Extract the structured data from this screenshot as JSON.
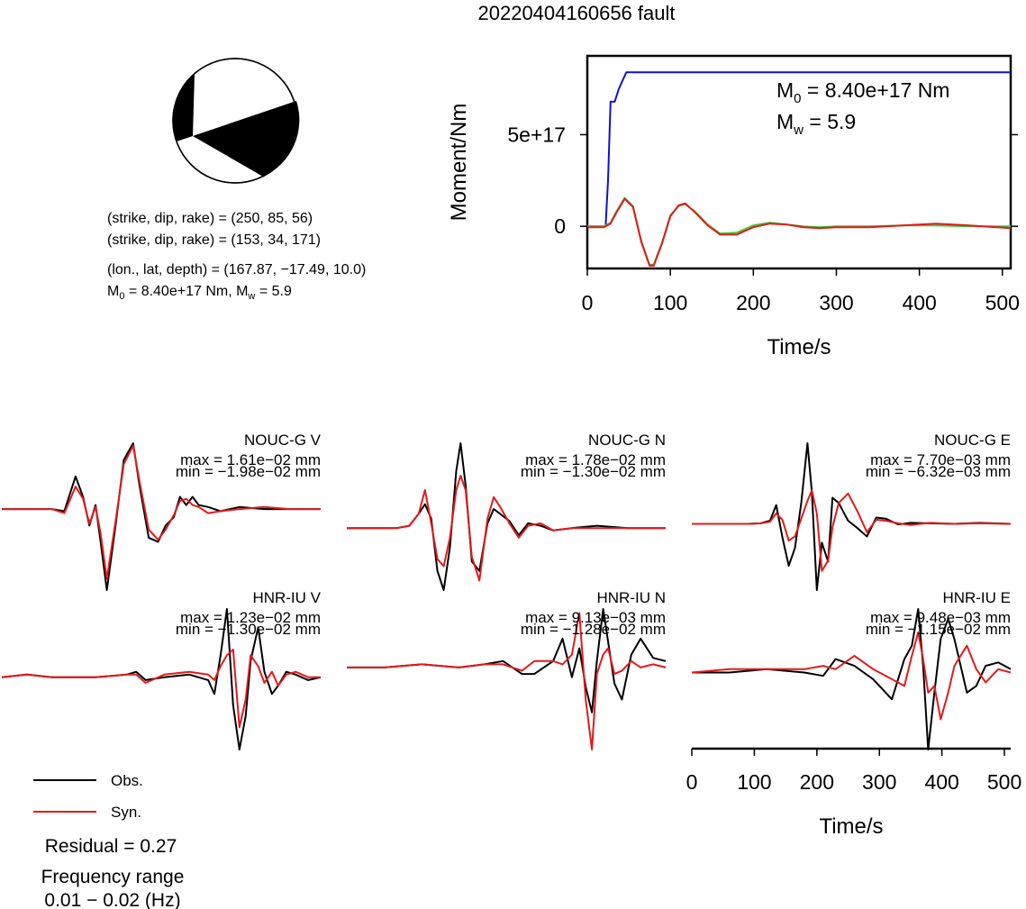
{
  "title": "20220404160656 fault",
  "mechanism": {
    "plane1": "(strike, dip, rake) = (250, 85, 56)",
    "plane2": "(strike, dip, rake) = (153, 34, 171)",
    "location": "(lon., lat, depth) = (167.87, −17.49, 10.0)",
    "moment_line": {
      "m0_sym": "M",
      "m0_sub": "0",
      "m0_val": " = 8.40e+17 Nm, M",
      "mw_sub": "w",
      "mw_val": " = 5.9"
    }
  },
  "moment_panel": {
    "m0_label": {
      "sym": "M",
      "sub": "0",
      "val": " = 8.40e+17 Nm"
    },
    "mw_label": {
      "sym": "M",
      "sub": "w",
      "val": " = 5.9"
    }
  },
  "legend": {
    "obs": "Obs.",
    "syn": "Syn."
  },
  "residual": "Residual = 0.27",
  "freq_title": "Frequency range",
  "freq_value": "0.01 − 0.02 (Hz)",
  "colors": {
    "obs": "#000000",
    "syn": "#e31a1c",
    "moment": "#1010d0",
    "stf": "#3cc83c"
  },
  "chart_data": [
    {
      "type": "line",
      "title": "",
      "xlabel": "Time/s",
      "ylabel": "Moment/Nm",
      "xlim": [
        0,
        510
      ],
      "ylim": [
        -2.3e+17,
        9.3e+17
      ],
      "xticks": [
        "0",
        "100",
        "200",
        "300",
        "400",
        "500"
      ],
      "yticks": [
        "0",
        "5e+17"
      ],
      "series": [
        {
          "name": "",
          "color": "blue",
          "x": [
            0,
            22,
            25,
            28,
            33,
            38,
            43,
            47,
            510
          ],
          "y": [
            0,
            0,
            2.5e+17,
            6.8e+17,
            6.8e+17,
            7.5e+17,
            8e+17,
            8.4e+17,
            8.4e+17
          ]
        },
        {
          "name": "",
          "color": "green",
          "x": [
            0,
            20,
            28,
            35,
            45,
            55,
            65,
            75,
            80,
            90,
            100,
            110,
            118,
            130,
            145,
            160,
            180,
            200,
            220,
            240,
            260,
            280,
            300,
            340,
            380,
            420,
            460,
            510
          ],
          "y": [
            0,
            0,
            2e+16,
            8e+16,
            1.55e+17,
            1.1e+17,
            -8e+16,
            -2.1e+17,
            -2.1e+17,
            -9e+16,
            6e+16,
            1.1e+17,
            1.2e+17,
            8e+16,
            1e+16,
            -4e+16,
            -3.5e+16,
            5000000000000000.0,
            2e+16,
            1e+16,
            0,
            -5000000000000000.0,
            0,
            0,
            5000000000000000.0,
            5000000000000000.0,
            0,
            0
          ]
        },
        {
          "name": "",
          "color": "red",
          "x": [
            0,
            20,
            28,
            35,
            45,
            55,
            65,
            75,
            80,
            90,
            100,
            110,
            118,
            130,
            145,
            160,
            180,
            200,
            220,
            240,
            260,
            280,
            300,
            340,
            380,
            420,
            460,
            510
          ],
          "y": [
            -5000000000000000.0,
            -5000000000000000.0,
            1.5e+16,
            7.5e+16,
            1.5e+17,
            1.05e+17,
            -8.5e+16,
            -2.15e+17,
            -2.15e+17,
            -9.5e+16,
            5.5e+16,
            1.15e+17,
            1.25e+17,
            7.5e+16,
            5000000000000000.0,
            -4.5e+16,
            -4.5e+16,
            -5000000000000000.0,
            1.5e+16,
            1e+16,
            -5000000000000000.0,
            -1e+16,
            -5000000000000000.0,
            -5000000000000000.0,
            5000000000000000.0,
            1.5e+16,
            5000000000000000.0,
            -1e+16
          ]
        }
      ]
    },
    {
      "type": "line",
      "title": "NOUC-G V",
      "max_label": "max = 1.61e−02 mm",
      "min_label": "min = −1.98e−02 mm",
      "xlim": [
        0,
        510
      ],
      "ylim": [
        -0.0198,
        0.0161
      ],
      "series": [
        {
          "name": "Obs.",
          "x": [
            0,
            80,
            100,
            118,
            130,
            140,
            150,
            158,
            168,
            182,
            195,
            210,
            220,
            235,
            250,
            262,
            275,
            285,
            295,
            305,
            315,
            330,
            350,
            380,
            420,
            460,
            510
          ],
          "y": [
            0,
            0,
            -0.0005,
            0.008,
            0.003,
            -0.004,
            0.001,
            -0.008,
            -0.0198,
            -0.004,
            0.012,
            0.0161,
            0.006,
            -0.007,
            -0.008,
            -0.004,
            -0.002,
            0.003,
            0.001,
            0.003,
            0.001,
            0.0005,
            -0.0005,
            0.0005,
            0,
            0,
            0
          ]
        },
        {
          "name": "Syn.",
          "x": [
            0,
            80,
            100,
            118,
            130,
            140,
            150,
            158,
            168,
            182,
            195,
            210,
            220,
            235,
            250,
            262,
            275,
            285,
            295,
            305,
            315,
            330,
            350,
            380,
            420,
            460,
            510
          ],
          "y": [
            0,
            0,
            -0.001,
            0.0055,
            0.0025,
            -0.0035,
            0.0005,
            -0.006,
            -0.017,
            -0.003,
            0.011,
            0.0155,
            0.007,
            -0.005,
            -0.0075,
            -0.005,
            -0.0015,
            0.002,
            0.0025,
            0.001,
            0.0005,
            -0.001,
            -0.0005,
            0,
            0.0005,
            0,
            0
          ]
        }
      ]
    },
    {
      "type": "line",
      "title": "NOUC-G N",
      "max_label": "max = 1.78e−02 mm",
      "min_label": "min = −1.30e−02 mm",
      "xlim": [
        0,
        510
      ],
      "ylim": [
        -0.013,
        0.0178
      ],
      "series": [
        {
          "name": "Obs.",
          "x": [
            0,
            80,
            100,
            115,
            125,
            135,
            145,
            155,
            165,
            175,
            182,
            190,
            200,
            212,
            225,
            235,
            245,
            260,
            275,
            290,
            310,
            330,
            360,
            400,
            450,
            510
          ],
          "y": [
            0,
            0,
            0.0005,
            0.003,
            0.005,
            0.002,
            -0.009,
            -0.013,
            -0.004,
            0.012,
            0.0178,
            0.009,
            -0.007,
            -0.009,
            0.001,
            0.004,
            0.003,
            0.0015,
            -0.0015,
            0.001,
            0.0005,
            -0.0005,
            0,
            0.0005,
            0,
            0
          ]
        },
        {
          "name": "Syn.",
          "x": [
            0,
            80,
            100,
            115,
            125,
            135,
            145,
            155,
            165,
            175,
            182,
            190,
            200,
            212,
            225,
            235,
            245,
            260,
            275,
            290,
            310,
            330,
            360,
            400,
            450,
            510
          ],
          "y": [
            0,
            0,
            0.0005,
            0.003,
            0.008,
            0.001,
            -0.0065,
            -0.008,
            -0.002,
            0.008,
            0.011,
            0.008,
            -0.006,
            -0.011,
            0.002,
            0.0065,
            0.0045,
            0.001,
            -0.002,
            0.0005,
            0.001,
            -0.0005,
            0,
            0,
            0,
            0
          ]
        }
      ]
    },
    {
      "type": "line",
      "title": "NOUC-G E",
      "max_label": "max = 7.70e−03 mm",
      "min_label": "min = −6.32e−03 mm",
      "xlim": [
        0,
        510
      ],
      "ylim": [
        -0.00632,
        0.0077
      ],
      "series": [
        {
          "name": "Obs.",
          "x": [
            0,
            90,
            110,
            125,
            135,
            145,
            155,
            165,
            175,
            185,
            192,
            200,
            208,
            218,
            225,
            235,
            250,
            265,
            280,
            295,
            310,
            330,
            350,
            380,
            420,
            460,
            510
          ],
          "y": [
            0,
            0,
            5e-05,
            0.0003,
            0.0018,
            -0.0013,
            -0.004,
            -0.0023,
            0.002,
            0.0077,
            0.003,
            -0.00632,
            -0.0018,
            -0.0036,
            0.0025,
            0.002,
            0.0003,
            -0.0004,
            -0.0012,
            0.0006,
            0.0005,
            -5e-05,
            0.0001,
            5e-05,
            0,
            0.0001,
            0
          ]
        },
        {
          "name": "Syn.",
          "x": [
            0,
            90,
            110,
            125,
            135,
            145,
            155,
            165,
            175,
            185,
            192,
            200,
            208,
            218,
            225,
            235,
            250,
            265,
            280,
            295,
            310,
            330,
            350,
            380,
            420,
            460,
            510
          ],
          "y": [
            0,
            0,
            5e-05,
            0.0002,
            0.001,
            0.0004,
            -0.0016,
            -0.0012,
            0.0005,
            0.0022,
            0.0032,
            0.001,
            -0.0045,
            -0.0035,
            -0.0003,
            0.002,
            0.0029,
            0.0012,
            -0.0008,
            0.0004,
            0.0003,
            5e-05,
            -0.0001,
            0.0001,
            0,
            5e-05,
            0
          ]
        }
      ]
    },
    {
      "type": "line",
      "title": "HNR-IU V",
      "max_label": "max = 1.23e−02 mm",
      "min_label": "min = −1.30e−02 mm",
      "xlim": [
        0,
        510
      ],
      "ylim": [
        -0.013,
        0.0123
      ],
      "series": [
        {
          "name": "Obs.",
          "x": [
            0,
            40,
            80,
            150,
            200,
            215,
            230,
            260,
            300,
            330,
            340,
            350,
            360,
            370,
            380,
            390,
            398,
            410,
            420,
            432,
            442,
            455,
            470,
            490,
            510
          ],
          "y": [
            0,
            0.0005,
            0,
            0,
            0.0005,
            0.001,
            -0.0005,
            0,
            0.0005,
            -0.0005,
            -0.003,
            0.004,
            0.0123,
            -0.005,
            -0.013,
            -0.007,
            0.003,
            0.009,
            0.001,
            -0.003,
            -0.0015,
            0.001,
            0.0005,
            -0.0005,
            0
          ]
        },
        {
          "name": "Syn.",
          "x": [
            0,
            40,
            80,
            150,
            200,
            215,
            230,
            260,
            300,
            330,
            340,
            350,
            360,
            370,
            380,
            390,
            398,
            410,
            420,
            432,
            442,
            455,
            470,
            490,
            510
          ],
          "y": [
            0,
            0.0005,
            0,
            0,
            0.0005,
            0.0005,
            -0.001,
            0.0005,
            0.001,
            0.0005,
            -0.0005,
            0.002,
            0.004,
            0.005,
            -0.009,
            -0.004,
            0.004,
            0.002,
            -0.001,
            0.001,
            -0.0015,
            0.0005,
            0.001,
            0,
            0
          ]
        }
      ]
    },
    {
      "type": "line",
      "title": "HNR-IU N",
      "max_label": "max = 9.13e−03 mm",
      "min_label": "min = −1.28e−02 mm",
      "xlim": [
        0,
        510
      ],
      "ylim": [
        -0.0128,
        0.00913
      ],
      "series": [
        {
          "name": "Obs.",
          "x": [
            0,
            60,
            120,
            180,
            220,
            250,
            280,
            300,
            330,
            345,
            360,
            372,
            382,
            392,
            400,
            410,
            418,
            428,
            440,
            455,
            470,
            490,
            510
          ],
          "y": [
            0,
            0,
            0.0005,
            0,
            0.0005,
            0.001,
            -0.001,
            -0.001,
            0.001,
            0.0045,
            -0.0015,
            0.003,
            -0.003,
            -0.007,
            0.001,
            0.00913,
            0.004,
            -0.0025,
            -0.005,
            0.002,
            0.0045,
            0.0015,
            0.001
          ]
        },
        {
          "name": "Syn.",
          "x": [
            0,
            60,
            120,
            180,
            220,
            250,
            280,
            300,
            330,
            345,
            360,
            372,
            382,
            392,
            400,
            410,
            418,
            428,
            440,
            455,
            470,
            490,
            510
          ],
          "y": [
            0,
            0,
            0.0005,
            0,
            0.0005,
            0.0005,
            -0.0005,
            0.001,
            0.001,
            0.0005,
            0.002,
            0.0085,
            -0.005,
            -0.0128,
            -0.001,
            0.002,
            0.003,
            -0.001,
            -0.0005,
            0.001,
            0,
            0.0005,
            0
          ]
        }
      ]
    },
    {
      "type": "line",
      "title": "HNR-IU E",
      "max_label": "max = 9.48e−03 mm",
      "min_label": "min = −1.15e−02 mm",
      "xlim": [
        0,
        510
      ],
      "ylim": [
        -0.0115,
        0.00948
      ],
      "xlabel": "Time/s",
      "xticks": [
        "0",
        "100",
        "200",
        "300",
        "400",
        "500"
      ],
      "series": [
        {
          "name": "Obs.",
          "x": [
            0,
            60,
            120,
            180,
            210,
            230,
            260,
            290,
            320,
            340,
            352,
            362,
            370,
            378,
            388,
            398,
            410,
            420,
            440,
            455,
            470,
            490,
            510
          ],
          "y": [
            0,
            0,
            0.0005,
            0,
            -0.0005,
            0.002,
            0.001,
            -0.001,
            -0.004,
            0.002,
            0.004,
            0.00948,
            0.001,
            -0.0115,
            -0.003,
            0.005,
            0.008,
            0.005,
            -0.003,
            -0.002,
            0.001,
            0.0015,
            0.0005
          ]
        },
        {
          "name": "Syn.",
          "x": [
            0,
            60,
            120,
            180,
            210,
            230,
            260,
            290,
            320,
            340,
            352,
            362,
            370,
            378,
            388,
            398,
            410,
            420,
            440,
            455,
            470,
            490,
            510
          ],
          "y": [
            0,
            0.0005,
            0.0005,
            0.0005,
            0.001,
            0.0005,
            0.0025,
            0.0005,
            -0.001,
            -0.002,
            0.0025,
            0.006,
            0.002,
            -0.003,
            -0.002,
            -0.007,
            -0.003,
            0.001,
            0.004,
            0.0005,
            -0.0015,
            0.0005,
            0
          ]
        }
      ]
    }
  ]
}
